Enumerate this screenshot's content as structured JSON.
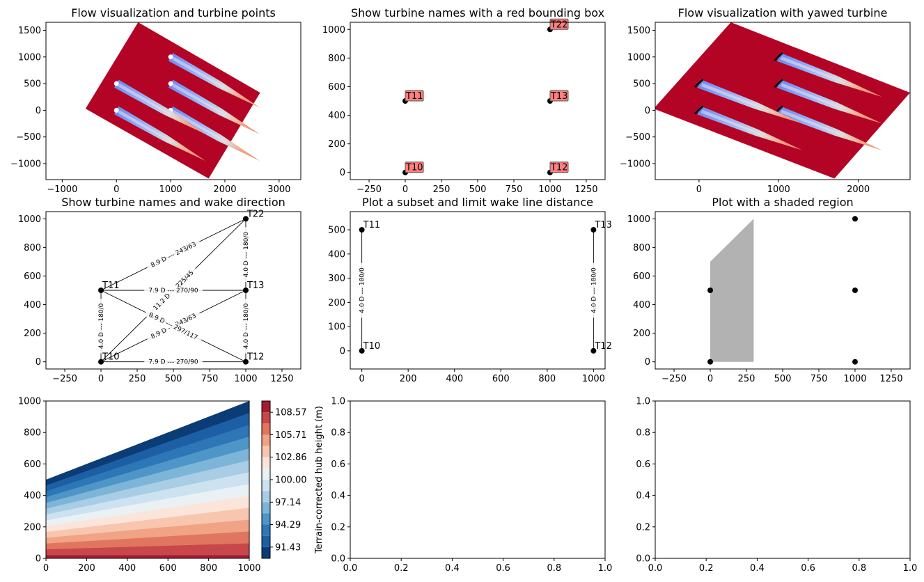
{
  "chart_data": [
    {
      "id": "p1",
      "type": "contour",
      "title": "Flow visualization and turbine points",
      "xlim": [
        -1300,
        3400
      ],
      "ylim": [
        -1300,
        1650
      ],
      "xticks": [
        -1000,
        0,
        1000,
        2000,
        3000
      ],
      "yticks": [
        -1000,
        -500,
        0,
        500,
        1000,
        1500
      ],
      "xticklabels": [
        "−1000",
        "0",
        "1000",
        "2000",
        "3000"
      ],
      "yticklabels": [
        "−1000",
        "−500",
        "0",
        "500",
        "1000",
        "1500"
      ],
      "domain": [
        [
          -570,
          30
        ],
        [
          400,
          1650
        ],
        [
          2650,
          330
        ],
        [
          1700,
          -1280
        ]
      ],
      "turbines": [
        [
          0,
          0
        ],
        [
          1000,
          0
        ],
        [
          0,
          500
        ],
        [
          1000,
          500
        ],
        [
          1000,
          1000
        ]
      ],
      "wake_angle_deg": -30,
      "wake_length": 1900,
      "background_color": "#b40426"
    },
    {
      "id": "p2",
      "type": "scatter",
      "title": "Show turbine names with a red bounding box",
      "xlim": [
        -380,
        1380
      ],
      "ylim": [
        -50,
        1050
      ],
      "xticks": [
        -250,
        0,
        250,
        500,
        750,
        1000,
        1250
      ],
      "yticks": [
        0,
        200,
        400,
        600,
        800,
        1000
      ],
      "xticklabels": [
        "−250",
        "0",
        "250",
        "500",
        "750",
        "1000",
        "1250"
      ],
      "yticklabels": [
        "0",
        "200",
        "400",
        "600",
        "800",
        "1000"
      ],
      "points": [
        {
          "name": "T10",
          "x": 0,
          "y": 0
        },
        {
          "name": "T11",
          "x": 0,
          "y": 500
        },
        {
          "name": "T12",
          "x": 1000,
          "y": 0
        },
        {
          "name": "T13",
          "x": 1000,
          "y": 500
        },
        {
          "name": "T22",
          "x": 1000,
          "y": 1000
        }
      ],
      "label_box_color": "#ff7f7f"
    },
    {
      "id": "p3",
      "type": "contour",
      "title": "Flow visualization with yawed turbine",
      "xlim": [
        -550,
        2650
      ],
      "ylim": [
        -1300,
        1650
      ],
      "xticks": [
        0,
        1000,
        2000
      ],
      "yticks": [
        -1000,
        -500,
        0,
        500,
        1000,
        1500
      ],
      "xticklabels": [
        "0",
        "1000",
        "2000"
      ],
      "yticklabels": [
        "−1000",
        "−500",
        "0",
        "500",
        "1000",
        "1500"
      ],
      "domain": [
        [
          -570,
          30
        ],
        [
          400,
          1650
        ],
        [
          2650,
          330
        ],
        [
          1700,
          -1280
        ]
      ],
      "turbines": [
        [
          0,
          0
        ],
        [
          1000,
          0
        ],
        [
          0,
          500
        ],
        [
          1000,
          500
        ],
        [
          1000,
          1000
        ]
      ],
      "wake_angle_deg": -30,
      "wake_length": 1500,
      "background_color": "#b40426"
    },
    {
      "id": "p4",
      "type": "network",
      "title": "Show turbine names and wake direction",
      "xlim": [
        -380,
        1380
      ],
      "ylim": [
        -50,
        1050
      ],
      "xticks": [
        -250,
        0,
        250,
        500,
        750,
        1000,
        1250
      ],
      "yticks": [
        0,
        200,
        400,
        600,
        800,
        1000
      ],
      "xticklabels": [
        "−250",
        "0",
        "250",
        "500",
        "750",
        "1000",
        "1250"
      ],
      "yticklabels": [
        "0",
        "200",
        "400",
        "600",
        "800",
        "1000"
      ],
      "points": [
        {
          "name": "T10",
          "x": 0,
          "y": 0
        },
        {
          "name": "T11",
          "x": 0,
          "y": 500
        },
        {
          "name": "T12",
          "x": 1000,
          "y": 0
        },
        {
          "name": "T13",
          "x": 1000,
          "y": 500
        },
        {
          "name": "T22",
          "x": 1000,
          "y": 1000
        }
      ],
      "edges": [
        {
          "from": "T11",
          "to": "T22",
          "label": "8.9 D --- 243/63"
        },
        {
          "from": "T10",
          "to": "T22",
          "label": "11.2 D --- 225/45"
        },
        {
          "from": "T11",
          "to": "T13",
          "label": "7.9 D --- 270/90"
        },
        {
          "from": "T10",
          "to": "T13",
          "label": "8.9 D --- 243/63"
        },
        {
          "from": "T11",
          "to": "T12",
          "label": "8.9 D --- 297/117"
        },
        {
          "from": "T10",
          "to": "T12",
          "label": "7.9 D --- 270/90"
        },
        {
          "from": "T10",
          "to": "T11",
          "label": "4.0 D --- 180/0"
        },
        {
          "from": "T12",
          "to": "T13",
          "label": "4.0 D --- 180/0"
        },
        {
          "from": "T13",
          "to": "T22",
          "label": "4.0 D --- 180/0"
        }
      ]
    },
    {
      "id": "p5",
      "type": "network",
      "title": "Plot a subset and limit wake line distance",
      "xlim": [
        -50,
        1050
      ],
      "ylim": [
        -75,
        575
      ],
      "xticks": [
        0,
        200,
        400,
        600,
        800,
        1000
      ],
      "yticks": [
        0,
        100,
        200,
        300,
        400,
        500
      ],
      "xticklabels": [
        "0",
        "200",
        "400",
        "600",
        "800",
        "1000"
      ],
      "yticklabels": [
        "0",
        "100",
        "200",
        "300",
        "400",
        "500"
      ],
      "points": [
        {
          "name": "T10",
          "x": 0,
          "y": 0
        },
        {
          "name": "T11",
          "x": 0,
          "y": 500
        },
        {
          "name": "T12",
          "x": 1000,
          "y": 0
        },
        {
          "name": "T13",
          "x": 1000,
          "y": 500
        }
      ],
      "edges": [
        {
          "from": "T10",
          "to": "T11",
          "label": "4.0 D --- 180/0"
        },
        {
          "from": "T12",
          "to": "T13",
          "label": "4.0 D --- 180/0"
        }
      ]
    },
    {
      "id": "p6",
      "type": "scatter",
      "title": "Plot with a shaded region",
      "xlim": [
        -380,
        1380
      ],
      "ylim": [
        -50,
        1050
      ],
      "xticks": [
        -250,
        0,
        250,
        500,
        750,
        1000,
        1250
      ],
      "yticks": [
        0,
        200,
        400,
        600,
        800,
        1000
      ],
      "xticklabels": [
        "−250",
        "0",
        "250",
        "500",
        "750",
        "1000",
        "1250"
      ],
      "yticklabels": [
        "0",
        "200",
        "400",
        "600",
        "800",
        "1000"
      ],
      "points": [
        {
          "x": 0,
          "y": 0
        },
        {
          "x": 0,
          "y": 500
        },
        {
          "x": 1000,
          "y": 0
        },
        {
          "x": 1000,
          "y": 500
        },
        {
          "x": 1000,
          "y": 1000
        }
      ],
      "shaded_region": [
        [
          0,
          0
        ],
        [
          300,
          0
        ],
        [
          300,
          1000
        ],
        [
          0,
          700
        ]
      ],
      "shade_color": "#b2b2b2"
    },
    {
      "id": "p7",
      "type": "contourf",
      "title": "",
      "xlim": [
        0,
        1000
      ],
      "ylim": [
        0,
        1000
      ],
      "xticks": [
        0,
        200,
        400,
        600,
        800,
        1000
      ],
      "yticks": [
        0,
        200,
        400,
        600,
        800,
        1000
      ],
      "xticklabels": [
        "0",
        "200",
        "400",
        "600",
        "800",
        "1000"
      ],
      "yticklabels": [
        "0",
        "200",
        "400",
        "600",
        "800",
        "1000"
      ],
      "levels": [
        90.0,
        91.43,
        92.86,
        94.29,
        95.71,
        97.14,
        98.57,
        100.0,
        101.43,
        102.86,
        104.29,
        105.71,
        107.14,
        108.57,
        110.0
      ],
      "colors": [
        "#0b3c75",
        "#1d5fa4",
        "#2e77b6",
        "#4e96c8",
        "#7db5d8",
        "#a8cde4",
        "#cde2f0",
        "#eaf1f5",
        "#fbe5da",
        "#f8c6ae",
        "#f1a385",
        "#e07660",
        "#c8474b",
        "#a51b33"
      ],
      "colorbar": {
        "label": "Terrain-corrected hub height (m)",
        "ticks": [
          91.43,
          94.29,
          97.14,
          100.0,
          102.86,
          105.71,
          108.57
        ],
        "ticklabels": [
          "91.43",
          "94.29",
          "97.14",
          "100.00",
          "102.86",
          "105.71",
          "108.57"
        ]
      }
    },
    {
      "id": "p8",
      "type": "empty",
      "title": "",
      "xlim": [
        0,
        1
      ],
      "ylim": [
        0,
        1
      ],
      "xticks": [
        0,
        0.2,
        0.4,
        0.6,
        0.8,
        1.0
      ],
      "yticks": [
        0,
        0.2,
        0.4,
        0.6,
        0.8,
        1.0
      ],
      "xticklabels": [
        "0.0",
        "0.2",
        "0.4",
        "0.6",
        "0.8",
        "1.0"
      ],
      "yticklabels": [
        "0.0",
        "0.2",
        "0.4",
        "0.6",
        "0.8",
        "1.0"
      ]
    },
    {
      "id": "p9",
      "type": "empty",
      "title": "",
      "xlim": [
        0,
        1
      ],
      "ylim": [
        0,
        1
      ],
      "xticks": [
        0,
        0.2,
        0.4,
        0.6,
        0.8,
        1.0
      ],
      "yticks": [
        0,
        0.2,
        0.4,
        0.6,
        0.8,
        1.0
      ],
      "xticklabels": [
        "0.0",
        "0.2",
        "0.4",
        "0.6",
        "0.8",
        "1.0"
      ],
      "yticklabels": [
        "0.0",
        "0.2",
        "0.4",
        "0.6",
        "0.8",
        "1.0"
      ]
    }
  ]
}
